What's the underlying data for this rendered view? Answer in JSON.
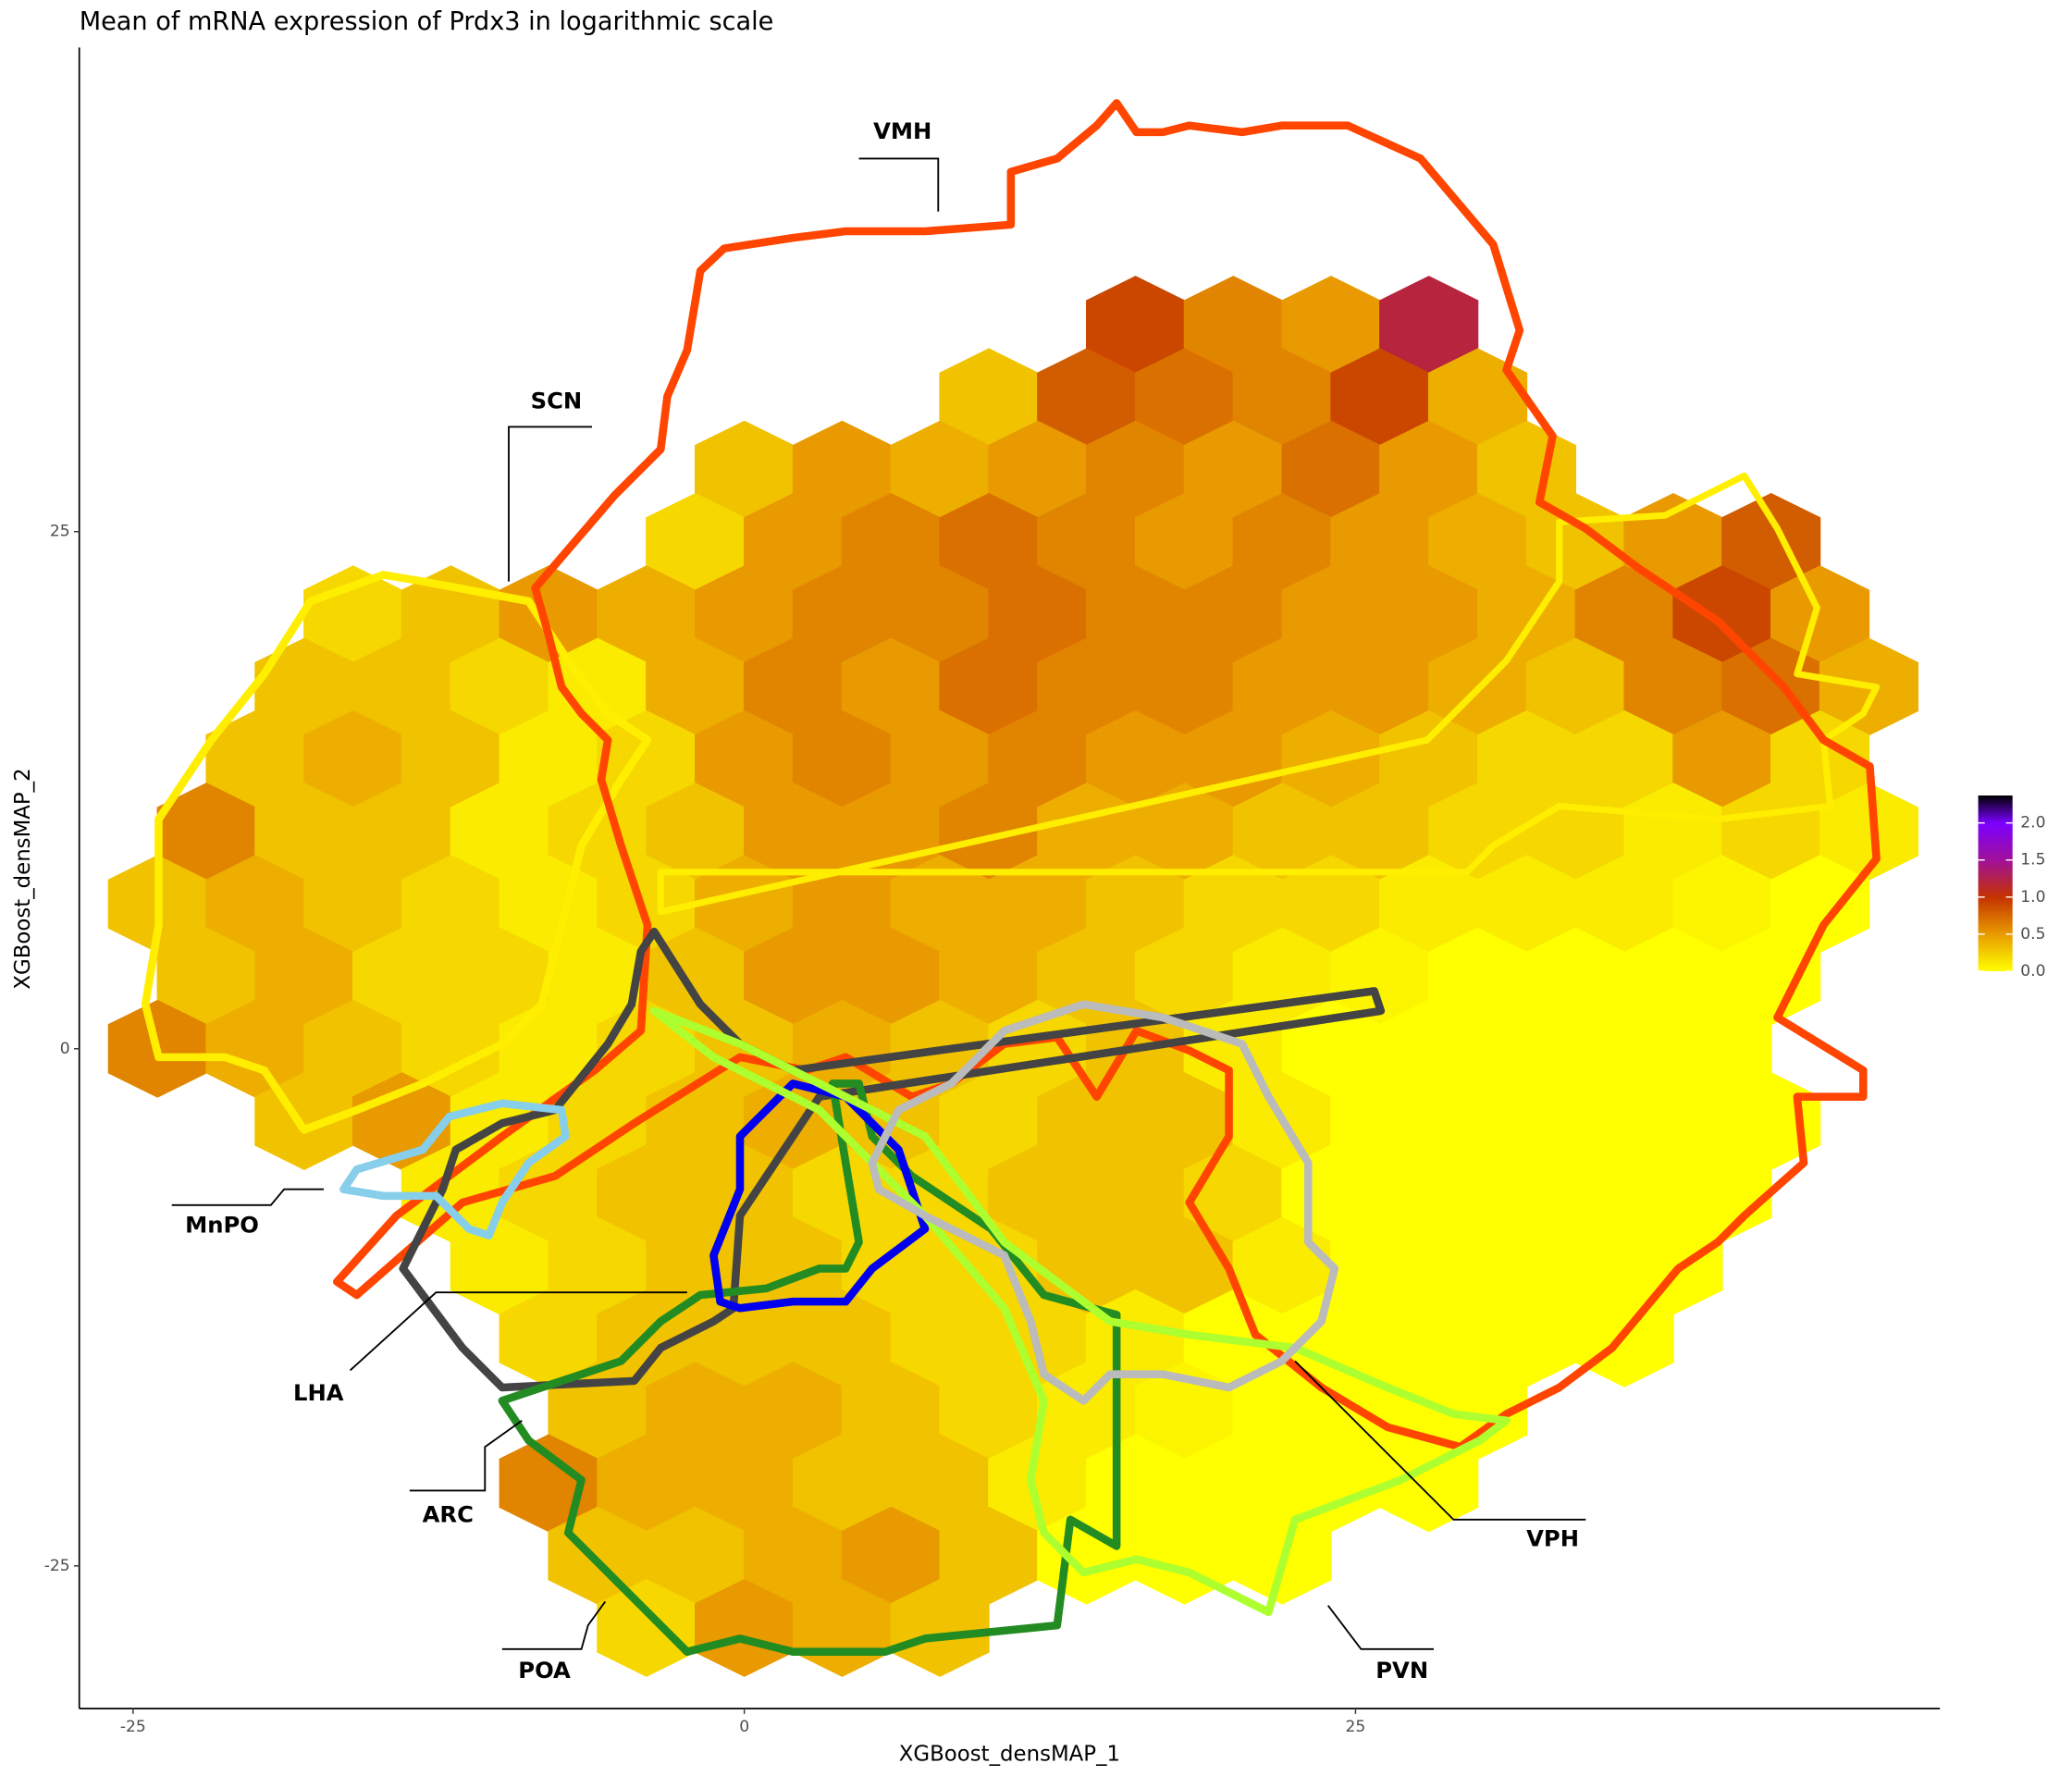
{
  "chart_data": {
    "type": "hexbin",
    "title": "Mean of mRNA expression of Prdx3 in logarithmic scale",
    "x_label": "XGBoost_densMAP_1",
    "y_label": "XGBoost_densMAP_2",
    "xlim": [
      -27.2,
      48.9
    ],
    "ylim": [
      -31.9,
      48.4
    ],
    "xticks": [
      -25,
      0,
      25
    ],
    "yticks": [
      -25,
      0,
      25
    ],
    "grid": false,
    "clim": [
      0,
      2.37
    ],
    "colorscale": [
      [
        0,
        "#ffff00"
      ],
      [
        0.5,
        "#e89a00"
      ],
      [
        1.0,
        "#c43200"
      ],
      [
        1.5,
        "#a0109a"
      ],
      [
        2.0,
        "#7a00ff"
      ],
      [
        2.37,
        "#000000"
      ]
    ],
    "colorbar_ticks": [
      {
        "value": 0,
        "label": "0.0"
      },
      0.5,
      {
        "value": 1,
        "label": "1.0"
      },
      1.5,
      {
        "value": 2,
        "label": "2.0"
      }
    ],
    "regions": [
      {
        "name": "VMH",
        "color": "#ff4500"
      },
      {
        "name": "SCN",
        "color": "#ffee00"
      },
      {
        "name": "MnPO",
        "color": "#87ceeb"
      },
      {
        "name": "LHA",
        "color": "#444444"
      },
      {
        "name": "ARC",
        "color": "#0000ee"
      },
      {
        "name": "POA",
        "color": "#228b22"
      },
      {
        "name": "PVN",
        "color": "#adff2f"
      },
      {
        "name": "VPH",
        "color": "#bbbbbb"
      }
    ],
    "hexes": [
      [
        16,
        35,
        0.9
      ],
      [
        20,
        35,
        0.6
      ],
      [
        24,
        35,
        0.5
      ],
      [
        28,
        35,
        1.2
      ],
      [
        10,
        31.5,
        0.3
      ],
      [
        14,
        31.5,
        0.8
      ],
      [
        18,
        31.5,
        0.7
      ],
      [
        22,
        31.5,
        0.6
      ],
      [
        26,
        31.5,
        0.9
      ],
      [
        30,
        31.5,
        0.4
      ],
      [
        0,
        28,
        0.3
      ],
      [
        4,
        28,
        0.5
      ],
      [
        8,
        28,
        0.4
      ],
      [
        12,
        28,
        0.5
      ],
      [
        16,
        28,
        0.6
      ],
      [
        20,
        28,
        0.5
      ],
      [
        24,
        28,
        0.7
      ],
      [
        28,
        28,
        0.5
      ],
      [
        32,
        28,
        0.3
      ],
      [
        -2,
        24.5,
        0.2
      ],
      [
        2,
        24.5,
        0.5
      ],
      [
        6,
        24.5,
        0.6
      ],
      [
        10,
        24.5,
        0.7
      ],
      [
        14,
        24.5,
        0.6
      ],
      [
        18,
        24.5,
        0.5
      ],
      [
        22,
        24.5,
        0.6
      ],
      [
        26,
        24.5,
        0.5
      ],
      [
        30,
        24.5,
        0.4
      ],
      [
        34,
        24.5,
        0.3
      ],
      [
        38,
        24.5,
        0.5
      ],
      [
        42,
        24.5,
        0.8
      ],
      [
        -16,
        21,
        0.2
      ],
      [
        -12,
        21,
        0.3
      ],
      [
        -8,
        21,
        0.5
      ],
      [
        -4,
        21,
        0.4
      ],
      [
        0,
        21,
        0.5
      ],
      [
        4,
        21,
        0.6
      ],
      [
        8,
        21,
        0.6
      ],
      [
        12,
        21,
        0.7
      ],
      [
        16,
        21,
        0.6
      ],
      [
        20,
        21,
        0.6
      ],
      [
        24,
        21,
        0.5
      ],
      [
        28,
        21,
        0.5
      ],
      [
        32,
        21,
        0.4
      ],
      [
        36,
        21,
        0.6
      ],
      [
        40,
        21,
        0.9
      ],
      [
        44,
        21,
        0.5
      ],
      [
        -18,
        17.5,
        0.3
      ],
      [
        -14,
        17.5,
        0.3
      ],
      [
        -10,
        17.5,
        0.2
      ],
      [
        -6,
        17.5,
        0.1
      ],
      [
        -2,
        17.5,
        0.4
      ],
      [
        2,
        17.5,
        0.6
      ],
      [
        6,
        17.5,
        0.5
      ],
      [
        10,
        17.5,
        0.7
      ],
      [
        14,
        17.5,
        0.6
      ],
      [
        18,
        17.5,
        0.6
      ],
      [
        22,
        17.5,
        0.5
      ],
      [
        26,
        17.5,
        0.5
      ],
      [
        30,
        17.5,
        0.4
      ],
      [
        34,
        17.5,
        0.3
      ],
      [
        38,
        17.5,
        0.6
      ],
      [
        42,
        17.5,
        0.7
      ],
      [
        46,
        17.5,
        0.4
      ],
      [
        -20,
        14,
        0.3
      ],
      [
        -16,
        14,
        0.4
      ],
      [
        -12,
        14,
        0.3
      ],
      [
        -8,
        14,
        0.1
      ],
      [
        -4,
        14,
        0.2
      ],
      [
        0,
        14,
        0.5
      ],
      [
        4,
        14,
        0.6
      ],
      [
        8,
        14,
        0.5
      ],
      [
        12,
        14,
        0.6
      ],
      [
        16,
        14,
        0.5
      ],
      [
        20,
        14,
        0.5
      ],
      [
        24,
        14,
        0.4
      ],
      [
        28,
        14,
        0.3
      ],
      [
        32,
        14,
        0.2
      ],
      [
        36,
        14,
        0.2
      ],
      [
        40,
        14,
        0.5
      ],
      [
        44,
        14,
        0.2
      ],
      [
        -22,
        10.5,
        0.6
      ],
      [
        -18,
        10.5,
        0.3
      ],
      [
        -14,
        10.5,
        0.3
      ],
      [
        -10,
        10.5,
        0.1
      ],
      [
        -6,
        10.5,
        0.2
      ],
      [
        -2,
        10.5,
        0.3
      ],
      [
        2,
        10.5,
        0.5
      ],
      [
        6,
        10.5,
        0.5
      ],
      [
        10,
        10.5,
        0.6
      ],
      [
        14,
        10.5,
        0.4
      ],
      [
        18,
        10.5,
        0.4
      ],
      [
        22,
        10.5,
        0.3
      ],
      [
        26,
        10.5,
        0.3
      ],
      [
        30,
        10.5,
        0.2
      ],
      [
        34,
        10.5,
        0.2
      ],
      [
        38,
        10.5,
        0.1
      ],
      [
        42,
        10.5,
        0.2
      ],
      [
        46,
        10.5,
        0.1
      ],
      [
        -24,
        7,
        0.3
      ],
      [
        -20,
        7,
        0.4
      ],
      [
        -16,
        7,
        0.3
      ],
      [
        -12,
        7,
        0.2
      ],
      [
        -8,
        7,
        0.1
      ],
      [
        -4,
        7,
        0.2
      ],
      [
        0,
        7,
        0.4
      ],
      [
        4,
        7,
        0.5
      ],
      [
        8,
        7,
        0.4
      ],
      [
        12,
        7,
        0.4
      ],
      [
        16,
        7,
        0.3
      ],
      [
        20,
        7,
        0.2
      ],
      [
        24,
        7,
        0.2
      ],
      [
        28,
        7,
        0.1
      ],
      [
        32,
        7,
        0.1
      ],
      [
        36,
        7,
        0.1
      ],
      [
        40,
        7,
        0.05
      ],
      [
        44,
        7,
        0
      ],
      [
        -22,
        3.5,
        0.3
      ],
      [
        -18,
        3.5,
        0.4
      ],
      [
        -14,
        3.5,
        0.2
      ],
      [
        -10,
        3.5,
        0.2
      ],
      [
        -6,
        3.5,
        0.1
      ],
      [
        -2,
        3.5,
        0.3
      ],
      [
        2,
        3.5,
        0.5
      ],
      [
        6,
        3.5,
        0.5
      ],
      [
        10,
        3.5,
        0.4
      ],
      [
        14,
        3.5,
        0.3
      ],
      [
        18,
        3.5,
        0.2
      ],
      [
        22,
        3.5,
        0.1
      ],
      [
        26,
        3.5,
        0.05
      ],
      [
        30,
        3.5,
        0
      ],
      [
        34,
        3.5,
        0
      ],
      [
        38,
        3.5,
        0
      ],
      [
        42,
        3.5,
        0
      ],
      [
        -24,
        0,
        0.6
      ],
      [
        -20,
        0,
        0.4
      ],
      [
        -16,
        0,
        0.3
      ],
      [
        -12,
        0,
        0.2
      ],
      [
        -8,
        0,
        0.1
      ],
      [
        -4,
        0,
        0.2
      ],
      [
        0,
        0,
        0.3
      ],
      [
        4,
        0,
        0.4
      ],
      [
        8,
        0,
        0.3
      ],
      [
        12,
        0,
        0.2
      ],
      [
        16,
        0,
        0.3
      ],
      [
        20,
        0,
        0.1
      ],
      [
        24,
        0,
        0
      ],
      [
        28,
        0,
        0
      ],
      [
        32,
        0,
        0
      ],
      [
        36,
        0,
        0
      ],
      [
        40,
        0,
        0
      ],
      [
        -18,
        -3.5,
        0.3
      ],
      [
        -14,
        -3.5,
        0.5
      ],
      [
        -10,
        -3.5,
        0.1
      ],
      [
        -6,
        -3.5,
        0.2
      ],
      [
        -2,
        -3.5,
        0.3
      ],
      [
        2,
        -3.5,
        0.4
      ],
      [
        6,
        -3.5,
        0.3
      ],
      [
        10,
        -3.5,
        0.2
      ],
      [
        14,
        -3.5,
        0.3
      ],
      [
        18,
        -3.5,
        0.3
      ],
      [
        22,
        -3.5,
        0.1
      ],
      [
        26,
        -3.5,
        0
      ],
      [
        30,
        -3.5,
        0
      ],
      [
        34,
        -3.5,
        0
      ],
      [
        38,
        -3.5,
        0
      ],
      [
        42,
        -3.5,
        0
      ],
      [
        -12,
        -7,
        0.1
      ],
      [
        -8,
        -7,
        0.2
      ],
      [
        -4,
        -7,
        0.3
      ],
      [
        0,
        -7,
        0.3
      ],
      [
        4,
        -7,
        0.2
      ],
      [
        8,
        -7,
        0.2
      ],
      [
        12,
        -7,
        0.3
      ],
      [
        16,
        -7,
        0.3
      ],
      [
        20,
        -7,
        0.2
      ],
      [
        24,
        -7,
        0
      ],
      [
        28,
        -7,
        0
      ],
      [
        32,
        -7,
        0
      ],
      [
        36,
        -7,
        0
      ],
      [
        40,
        -7,
        0
      ],
      [
        -10,
        -10.5,
        0.1
      ],
      [
        -6,
        -10.5,
        0.2
      ],
      [
        -2,
        -10.5,
        0.3
      ],
      [
        2,
        -10.5,
        0.3
      ],
      [
        6,
        -10.5,
        0.2
      ],
      [
        10,
        -10.5,
        0.2
      ],
      [
        14,
        -10.5,
        0.3
      ],
      [
        18,
        -10.5,
        0.3
      ],
      [
        22,
        -10.5,
        0.1
      ],
      [
        26,
        -10.5,
        0
      ],
      [
        30,
        -10.5,
        0
      ],
      [
        34,
        -10.5,
        0
      ],
      [
        38,
        -10.5,
        0
      ],
      [
        -8,
        -14,
        0.2
      ],
      [
        -4,
        -14,
        0.3
      ],
      [
        0,
        -14,
        0.3
      ],
      [
        4,
        -14,
        0.3
      ],
      [
        8,
        -14,
        0.2
      ],
      [
        12,
        -14,
        0.2
      ],
      [
        16,
        -14,
        0.1
      ],
      [
        20,
        -14,
        0
      ],
      [
        24,
        -14,
        0
      ],
      [
        28,
        -14,
        0
      ],
      [
        32,
        -14,
        0
      ],
      [
        36,
        -14,
        0
      ],
      [
        -6,
        -17.5,
        0.3
      ],
      [
        -2,
        -17.5,
        0.4
      ],
      [
        2,
        -17.5,
        0.4
      ],
      [
        6,
        -17.5,
        0.3
      ],
      [
        10,
        -17.5,
        0.2
      ],
      [
        14,
        -17.5,
        0.1
      ],
      [
        18,
        -17.5,
        0.05
      ],
      [
        22,
        -17.5,
        0
      ],
      [
        26,
        -17.5,
        0
      ],
      [
        30,
        -17.5,
        0
      ],
      [
        -8,
        -21,
        0.6
      ],
      [
        -4,
        -21,
        0.4
      ],
      [
        0,
        -21,
        0.4
      ],
      [
        4,
        -21,
        0.3
      ],
      [
        8,
        -21,
        0.3
      ],
      [
        12,
        -21,
        0.1
      ],
      [
        16,
        -21,
        0
      ],
      [
        20,
        -21,
        0
      ],
      [
        24,
        -21,
        0
      ],
      [
        28,
        -21,
        0
      ],
      [
        -6,
        -24.5,
        0.3
      ],
      [
        -2,
        -24.5,
        0.3
      ],
      [
        2,
        -24.5,
        0.4
      ],
      [
        6,
        -24.5,
        0.5
      ],
      [
        10,
        -24.5,
        0.3
      ],
      [
        14,
        -24.5,
        0
      ],
      [
        18,
        -24.5,
        0
      ],
      [
        22,
        -24.5,
        0
      ],
      [
        -4,
        -28,
        0.2
      ],
      [
        0,
        -28,
        0.5
      ],
      [
        4,
        -28,
        0.4
      ],
      [
        8,
        -28,
        0.3
      ]
    ]
  }
}
